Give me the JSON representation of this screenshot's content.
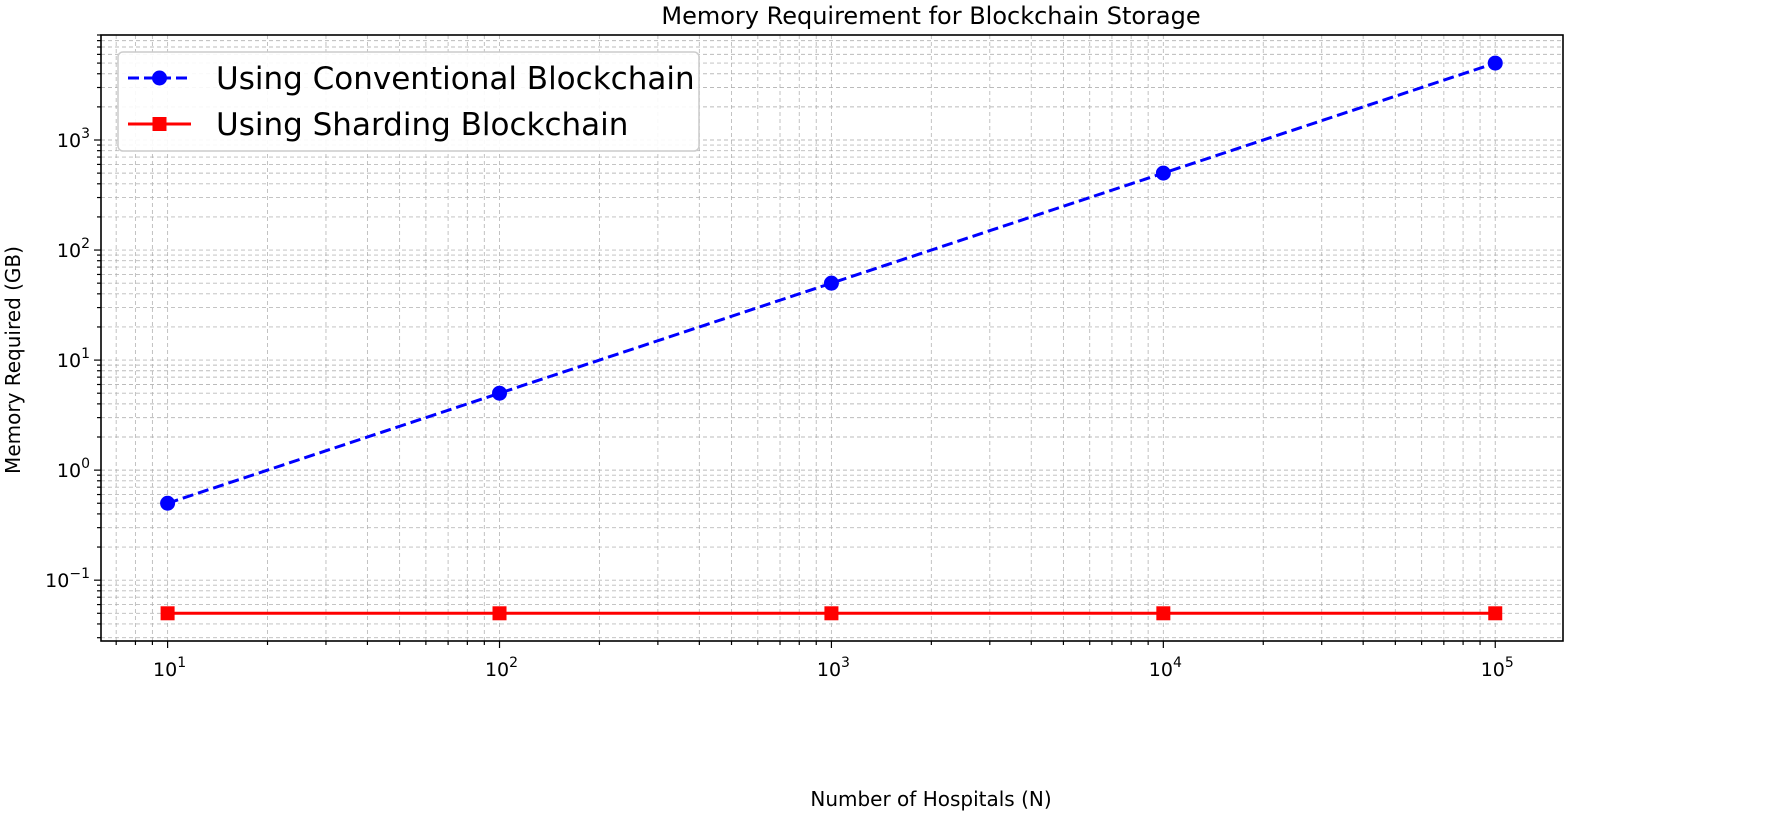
{
  "chart_data": {
    "type": "line",
    "title": "Memory Requirement for Blockchain Storage",
    "xlabel": "Number of Hospitals (N)",
    "ylabel": "Memory Required (GB)",
    "xscale": "log",
    "yscale": "log",
    "x": [
      10,
      100,
      1000,
      10000,
      100000
    ],
    "xlim": [
      6.3,
      160000
    ],
    "ylim": [
      0.028,
      9000
    ],
    "xticks": [
      {
        "value": 10,
        "base": "10",
        "exp": "1"
      },
      {
        "value": 100,
        "base": "10",
        "exp": "2"
      },
      {
        "value": 1000,
        "base": "10",
        "exp": "3"
      },
      {
        "value": 10000,
        "base": "10",
        "exp": "4"
      },
      {
        "value": 100000,
        "base": "10",
        "exp": "5"
      }
    ],
    "yticks": [
      {
        "value": 0.1,
        "base": "10",
        "exp": "−1"
      },
      {
        "value": 1,
        "base": "10",
        "exp": "0"
      },
      {
        "value": 10,
        "base": "10",
        "exp": "1"
      },
      {
        "value": 100,
        "base": "10",
        "exp": "2"
      },
      {
        "value": 1000,
        "base": "10",
        "exp": "3"
      }
    ],
    "grid": true,
    "legend_position": "upper-left",
    "series": [
      {
        "name": "Using Conventional Blockchain",
        "values": [
          0.5,
          5,
          50,
          500,
          5000
        ],
        "color": "#0000ff",
        "linestyle": "dashed",
        "marker": "circle"
      },
      {
        "name": "Using Sharding Blockchain",
        "values": [
          0.05,
          0.05,
          0.05,
          0.05,
          0.05
        ],
        "color": "#ff0000",
        "linestyle": "solid",
        "marker": "square"
      }
    ]
  }
}
